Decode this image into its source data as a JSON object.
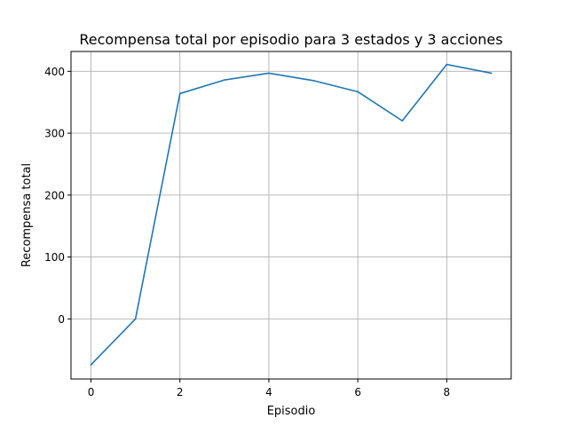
{
  "chart_data": {
    "type": "line",
    "title": "Recompensa total por episodio para 3 estados y 3 acciones",
    "xlabel": "Episodio",
    "ylabel": "Recompensa total",
    "x": [
      0,
      1,
      2,
      3,
      4,
      5,
      6,
      7,
      8,
      9
    ],
    "series": [
      {
        "values": [
          -74,
          0,
          364,
          386,
          397,
          385,
          367,
          320,
          411,
          397
        ],
        "color": "#1f77b4"
      }
    ],
    "xlim": [
      -0.45,
      9.45
    ],
    "ylim": [
      -97,
      432
    ],
    "xticks": [
      0,
      2,
      4,
      6,
      8
    ],
    "yticks": [
      0,
      100,
      200,
      300,
      400
    ],
    "xtick_labels": [
      "0",
      "2",
      "4",
      "6",
      "8"
    ],
    "ytick_labels": [
      "0",
      "100",
      "200",
      "300",
      "400"
    ],
    "grid": true,
    "legend": "none"
  }
}
